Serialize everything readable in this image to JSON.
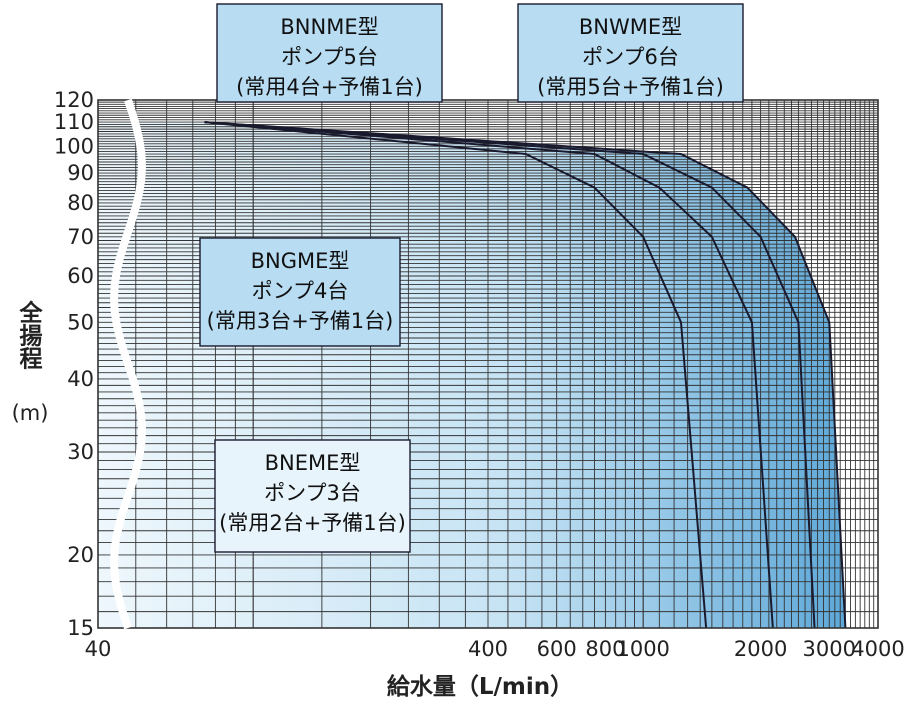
{
  "chart_data": {
    "type": "area",
    "x_scale": "log",
    "y_scale": "log",
    "xlim": [
      40,
      4000
    ],
    "ylim": [
      15,
      120
    ],
    "x_ticks": [
      "40",
      "400",
      "600",
      "800",
      "1000",
      "2000",
      "3000",
      "4000"
    ],
    "y_ticks": [
      "15",
      "20",
      "30",
      "40",
      "50",
      "60",
      "70",
      "80",
      "90",
      "100",
      "110",
      "120"
    ],
    "xlabel": "給水量（L/min）",
    "ylabel": "全揚程",
    "ylabel_unit": "(m)",
    "grid": true,
    "colors": {
      "grid": "#333333",
      "curve": "#1a1a2e",
      "region_light": "#e6f3fb",
      "region_mid": "#a9d2ec",
      "region_dark": "#6fb3de",
      "callout_fill_light": "#e8f4fb",
      "callout_fill_mid": "#b8dcf2",
      "break_line": "#ffffff"
    },
    "series": [
      {
        "name": "BNEME型",
        "lines": [
          "ポンプ3台",
          "(常用2台+予備1台)"
        ],
        "curve_x": [
          75,
          500,
          750,
          1000,
          1250,
          1450
        ],
        "curve_y": [
          110,
          97,
          85,
          70,
          50,
          15
        ]
      },
      {
        "name": "BNGME型",
        "lines": [
          "ポンプ4台",
          "(常用3台+予備1台)"
        ],
        "curve_x": [
          75,
          750,
          1100,
          1500,
          1900,
          2150
        ],
        "curve_y": [
          110,
          97,
          85,
          70,
          50,
          15
        ]
      },
      {
        "name": "BNNME型",
        "lines": [
          "ポンプ5台",
          "(常用4台+予備1台)"
        ],
        "curve_x": [
          75,
          1000,
          1500,
          2000,
          2500,
          2750
        ],
        "curve_y": [
          110,
          97,
          85,
          70,
          50,
          15
        ]
      },
      {
        "name": "BNWME型",
        "lines": [
          "ポンプ6台",
          "(常用5台+予備1台)"
        ],
        "curve_x": [
          75,
          1250,
          1850,
          2450,
          3000,
          3300
        ],
        "curve_y": [
          110,
          97,
          85,
          70,
          50,
          15
        ]
      }
    ]
  }
}
